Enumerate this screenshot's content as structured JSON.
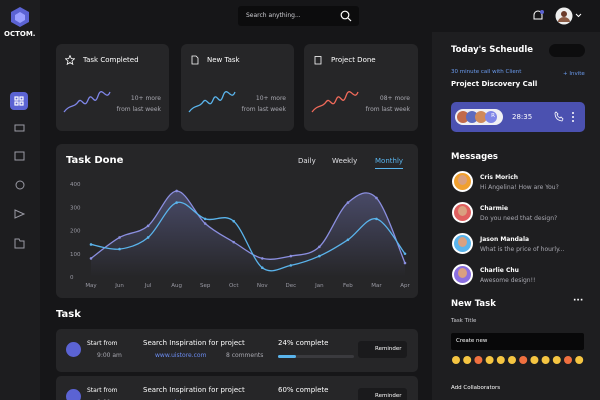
{
  "brand": "OCTOM.",
  "search_placeholder": "Search anything...",
  "stats": [
    {
      "title": "Task Completed",
      "value": "10+ more",
      "note": "from last week"
    },
    {
      "title": "New Task",
      "value": "10+ more",
      "note": "from last week"
    },
    {
      "title": "Project Done",
      "value": "08+ more",
      "note": "from last week"
    }
  ],
  "task_done": {
    "title": "Task Done",
    "tabs": [
      "Daily",
      "Weekly",
      "Monthly"
    ],
    "active_tab": 2,
    "chart": {
      "type": "line",
      "categories": [
        "May",
        "Jun",
        "Jul",
        "Aug",
        "Sep",
        "Oct",
        "Nov",
        "Dec",
        "Jan",
        "Feb",
        "Mar",
        "Apr"
      ],
      "series": [
        {
          "color": "#8b8fe0",
          "values": [
            80,
            170,
            220,
            370,
            230,
            150,
            80,
            90,
            130,
            320,
            340,
            60
          ]
        },
        {
          "color": "#5ab4ec",
          "values": [
            140,
            120,
            170,
            320,
            250,
            240,
            40,
            50,
            90,
            160,
            250,
            100
          ]
        }
      ],
      "ylim": [
        0,
        400
      ],
      "yticks": [
        0,
        100,
        200,
        300,
        400
      ]
    }
  },
  "tasks": {
    "title": "Task",
    "items": [
      {
        "start_label": "Start from",
        "time": "9:00 am",
        "title": "Search Inspiration for project",
        "link": "www.uistore.com",
        "comments": "8 comments",
        "progress": 24,
        "progress_label": "24% complete",
        "action": "Reminder"
      },
      {
        "start_label": "Start from",
        "time": "9:00 am",
        "title": "Search Inspiration for project",
        "link": "www.uistore.com",
        "progress": 60,
        "progress_label": "60% complete",
        "action": "Reminder"
      }
    ]
  },
  "schedule": {
    "title": "Today's Scheudle",
    "subtitle": "30 minute call with Client",
    "invite": "+ Invite",
    "event": "Project Discovery Call",
    "avatar_initial": "R",
    "timer": "28:35"
  },
  "messages": {
    "title": "Messages",
    "items": [
      {
        "name": "Cris Morich",
        "text": "Hi Angelina! How are You?"
      },
      {
        "name": "Charmie",
        "text": "Do you need that design?"
      },
      {
        "name": "Jason Mandala",
        "text": "What is the price of hourly..."
      },
      {
        "name": "Charlie Chu",
        "text": "Awesome design!!"
      }
    ]
  },
  "new_task": {
    "title": "New Task",
    "field_label": "Task Title",
    "input_value": "Create new",
    "collaborators_label": "Add Collaborators"
  }
}
